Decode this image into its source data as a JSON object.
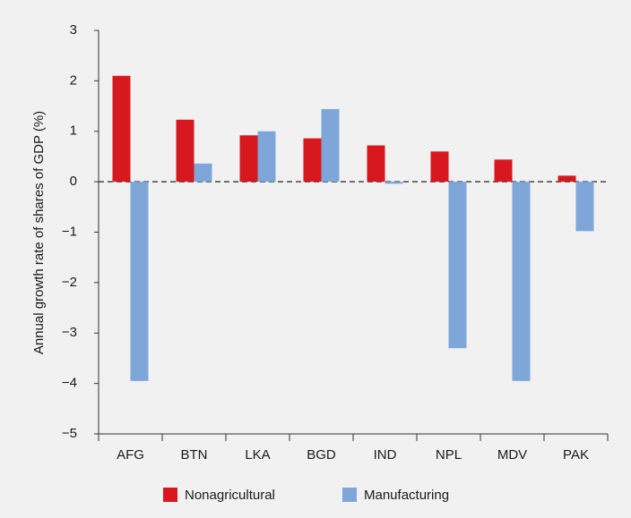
{
  "chart_data": {
    "type": "bar",
    "y_label": "Annual growth rate of shares of GDP (%)",
    "categories": [
      "AFG",
      "BTN",
      "LKA",
      "BGD",
      "IND",
      "NPL",
      "MDV",
      "PAK"
    ],
    "series": [
      {
        "name": "Nonagricultural",
        "color": "#d7191f",
        "values": [
          2.1,
          1.23,
          0.92,
          0.86,
          0.72,
          0.6,
          0.44,
          0.12
        ]
      },
      {
        "name": "Manufacturing",
        "color": "#7ea6d9",
        "values": [
          -3.95,
          0.36,
          1.0,
          1.44,
          -0.04,
          -3.3,
          -3.95,
          -0.98
        ]
      }
    ],
    "ylim": [
      -5,
      3
    ],
    "yticks": [
      {
        "value": -5,
        "label": "−5"
      },
      {
        "value": -4,
        "label": "−4"
      },
      {
        "value": -3,
        "label": "−3"
      },
      {
        "value": -2,
        "label": "−2"
      },
      {
        "value": -1,
        "label": "−1"
      },
      0,
      1,
      2,
      3
    ],
    "zero_line": "dashed",
    "legend": "bottom"
  }
}
